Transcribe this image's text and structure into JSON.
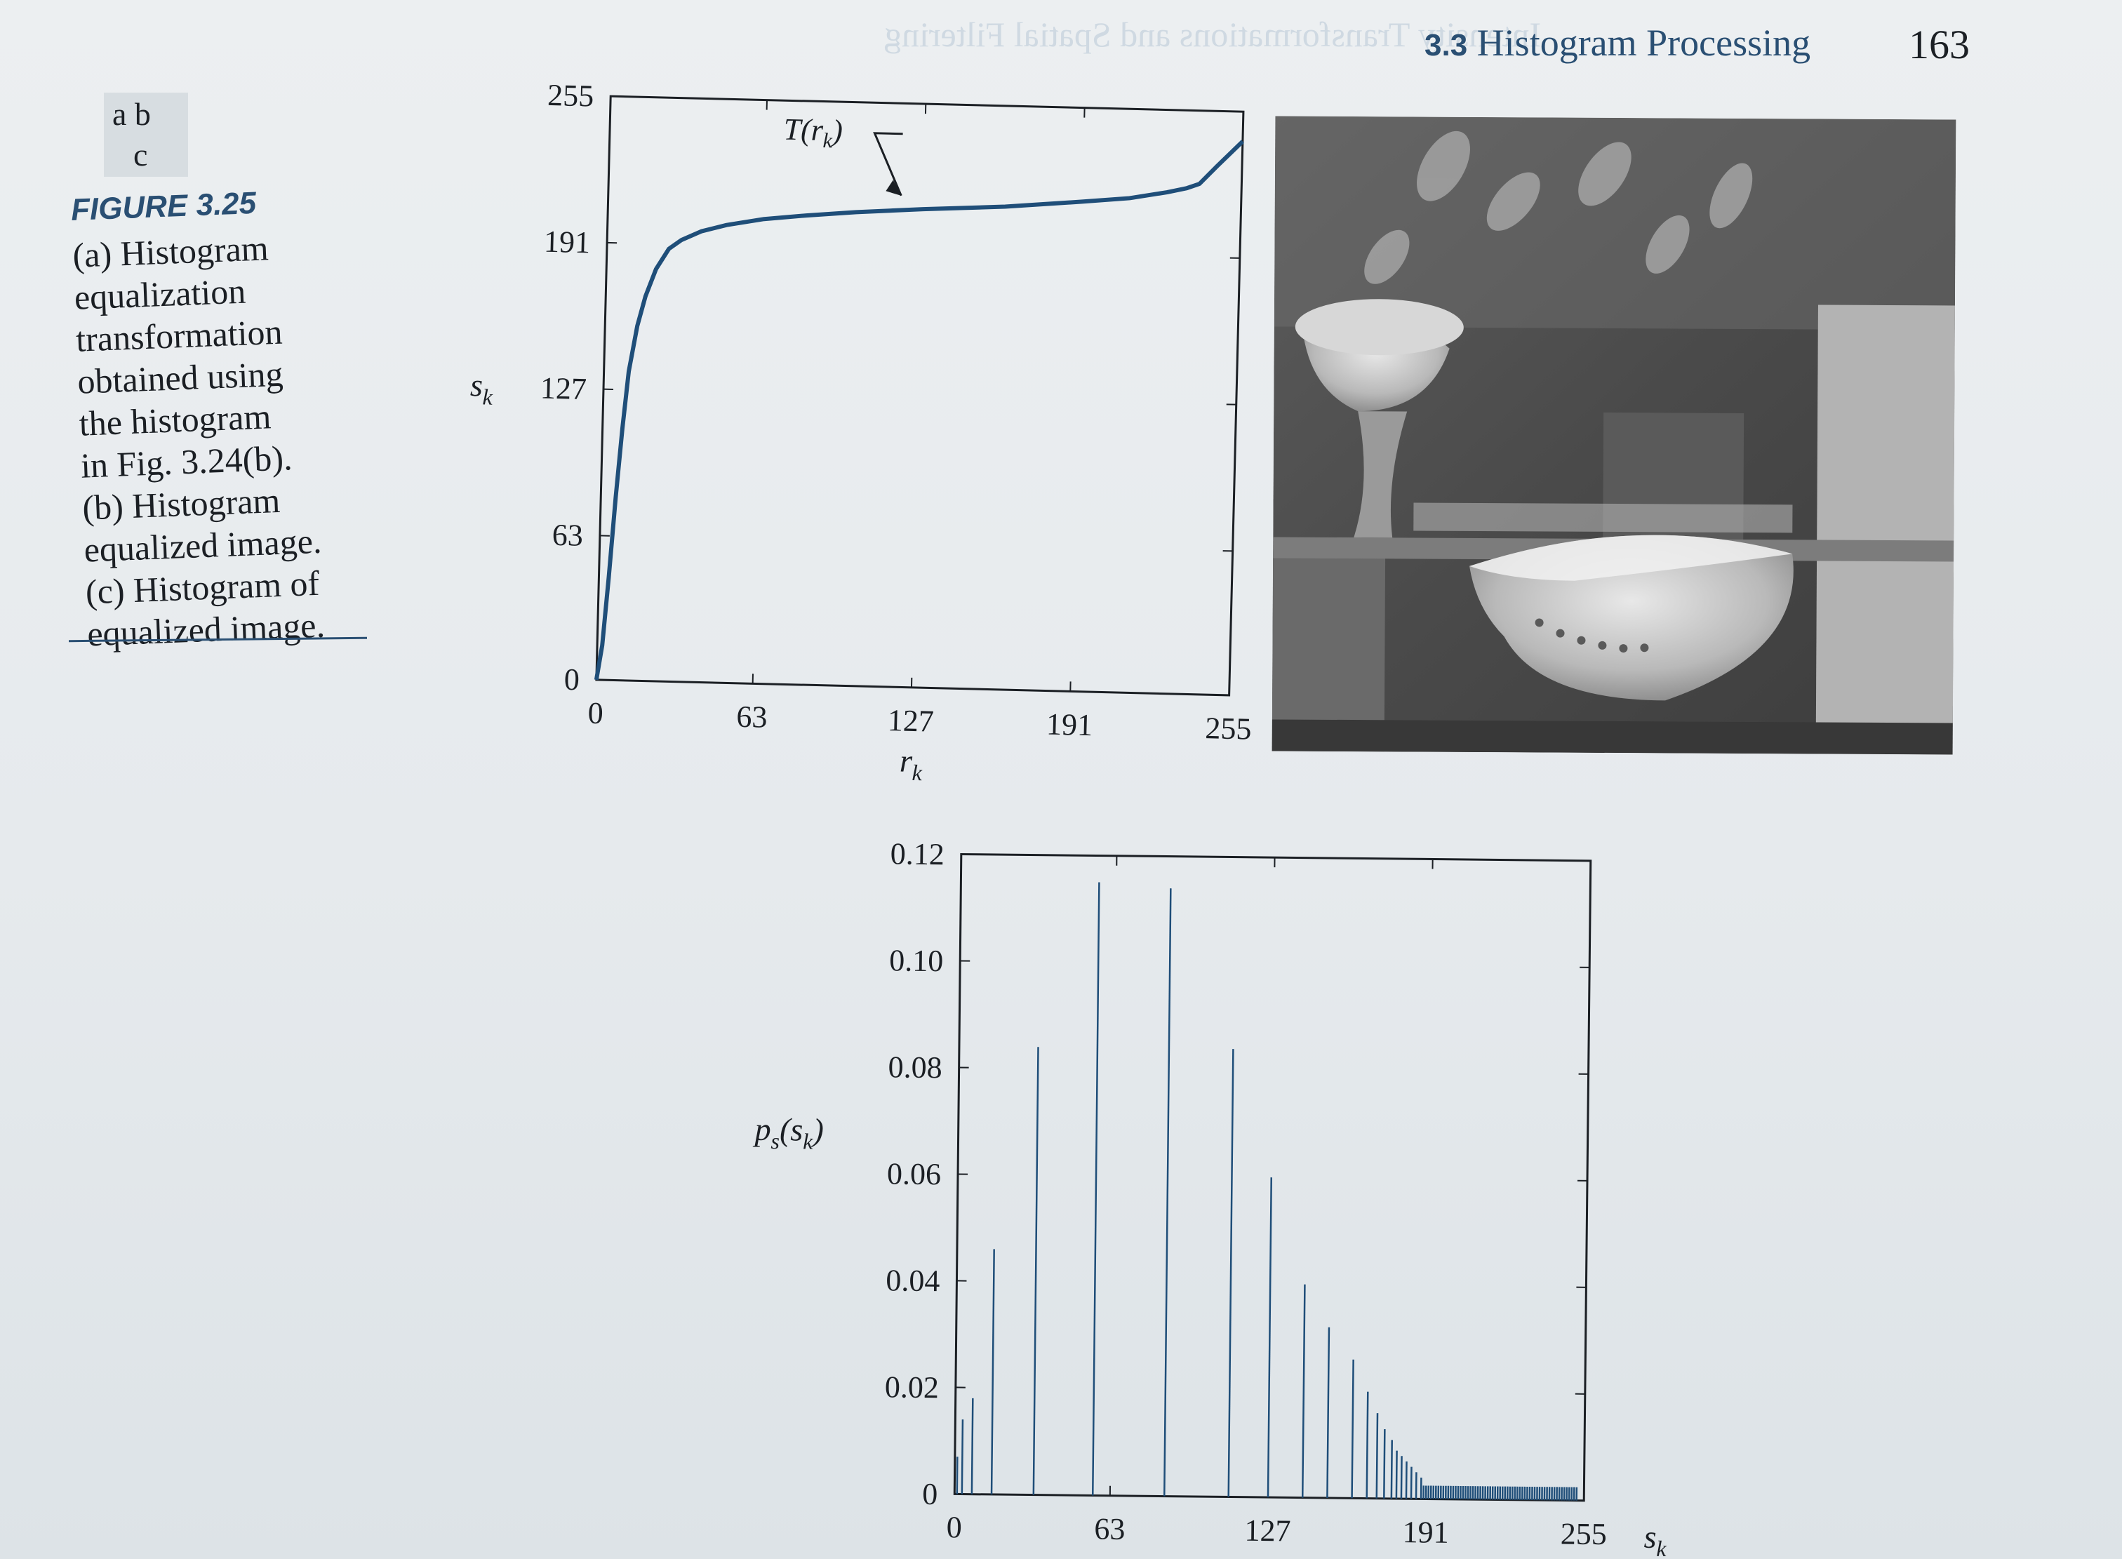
{
  "header": {
    "section_number": "3.3",
    "section_title": "Histogram Processing",
    "page_number": "163"
  },
  "panel_labels": [
    "a b",
    "c"
  ],
  "caption": {
    "figure_label": "FIGURE 3.25",
    "lines": [
      "(a) Histogram",
      "equalization",
      "transformation",
      "obtained using",
      "the histogram",
      "in Fig. 3.24(b).",
      "(b) Histogram",
      "equalized image.",
      "(c) Histogram of",
      "equalized image."
    ]
  },
  "photo": {
    "icon": "photo-of-bowls-on-shelf",
    "tone": "grayscale"
  },
  "colors": {
    "curve": "#1f4e79",
    "bars": "#1f4e79",
    "accent": "#2a4f73",
    "ink": "#1b1f24"
  },
  "chart_data": [
    {
      "id": "a",
      "type": "line",
      "series": [
        {
          "label": "T(r_k)",
          "x": [
            0,
            2,
            4,
            6,
            8,
            10,
            13,
            16,
            20,
            25,
            30,
            38,
            48,
            63,
            80,
            100,
            127,
            160,
            191,
            210,
            225,
            233,
            238,
            245,
            255
          ],
          "y": [
            0,
            15,
            45,
            80,
            110,
            135,
            155,
            168,
            180,
            189,
            193,
            197,
            200,
            203,
            205,
            207,
            209,
            211,
            214,
            216,
            219,
            221,
            223,
            231,
            242
          ]
        }
      ],
      "annotation": "T(r_k)",
      "xlabel": "r_k",
      "ylabel": "s_k",
      "xticks": [
        0,
        63,
        127,
        191,
        255
      ],
      "yticks": [
        0,
        63,
        127,
        191,
        255
      ],
      "xlim": [
        0,
        255
      ],
      "ylim": [
        0,
        255
      ]
    },
    {
      "id": "c",
      "type": "bar",
      "ylabel": "p_s(s_k)",
      "xlabel": "s_k",
      "xticks": [
        0,
        63,
        127,
        191,
        255
      ],
      "ytick_labels": [
        "0",
        "0.02",
        "0.04",
        "0.06",
        "0.08",
        "0.10",
        "0.12"
      ],
      "yticks": [
        0,
        0.02,
        0.04,
        0.06,
        0.08,
        0.1,
        0.12
      ],
      "xlim": [
        0,
        255
      ],
      "ylim": [
        0,
        0.12
      ],
      "major_bars": {
        "x": [
          1,
          3,
          7,
          15,
          32,
          56,
          85,
          111,
          127,
          141,
          151,
          161,
          167,
          171,
          174,
          177,
          179,
          181,
          183,
          185,
          187,
          189
        ],
        "y": [
          0.007,
          0.014,
          0.018,
          0.046,
          0.084,
          0.115,
          0.114,
          0.084,
          0.06,
          0.04,
          0.032,
          0.026,
          0.02,
          0.016,
          0.013,
          0.011,
          0.009,
          0.008,
          0.007,
          0.006,
          0.005,
          0.004
        ]
      },
      "tail_level": 0.0025,
      "tail_range": [
        190,
        252
      ]
    }
  ]
}
